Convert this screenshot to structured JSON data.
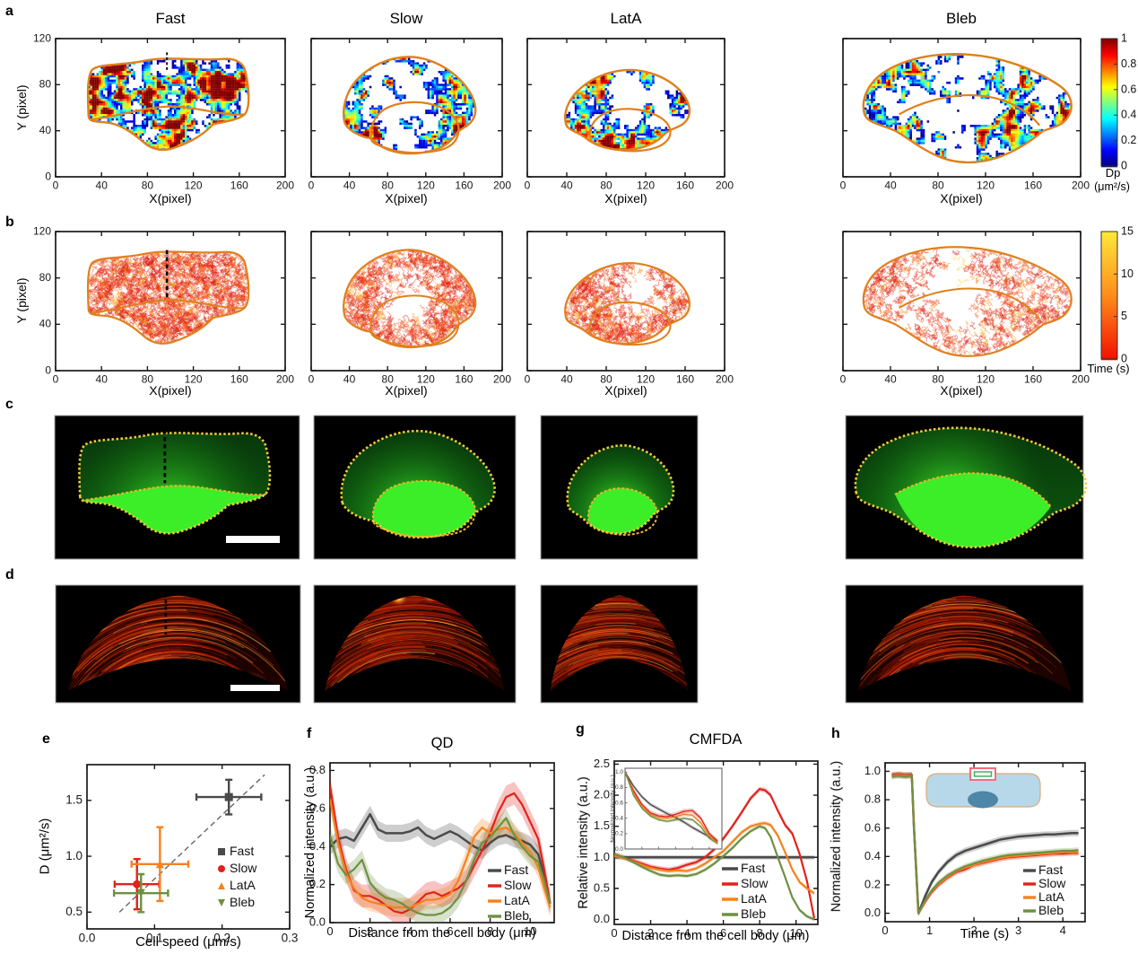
{
  "figure": {
    "bg": "#ffffff"
  },
  "panel_letters": {
    "a": "a",
    "b": "b",
    "c": "c",
    "d": "d",
    "e": "e",
    "f": "f",
    "g": "g",
    "h": "h"
  },
  "conditions": [
    "Fast",
    "Slow",
    "LatA",
    "Bleb"
  ],
  "condition_colors": {
    "Fast": "#4a4a4a",
    "Slow": "#e0231c",
    "LatA": "#f5821f",
    "Bleb": "#6e9043"
  },
  "outline_colors": {
    "cell_outline_orange": "#e0801c",
    "cell_outline_yellow": "#f5c93a",
    "inner_outline_yellow": "#eeb22e"
  },
  "row_a": {
    "xlabel": "X(pixel)",
    "ylabel": "Y (pixel)",
    "xlim": [
      0,
      200
    ],
    "ylim": [
      0,
      120
    ],
    "xticks": [
      0,
      40,
      80,
      120,
      160,
      200
    ],
    "xtick_labels": [
      "0",
      "40",
      "80",
      "120",
      "160",
      "200"
    ],
    "yticks": [
      0,
      40,
      80,
      120
    ],
    "ytick_labels": [
      "0",
      "40",
      "80",
      "120"
    ],
    "colorbar": {
      "title": "Dp",
      "units": "(μm²/s)",
      "tick_labels": [
        "0",
        "0.2",
        "0.4",
        "0.6",
        "0.8",
        "1"
      ],
      "colormap": "jet"
    }
  },
  "row_b": {
    "xlabel": "X(pixel)",
    "ylabel": "Y (pixel)",
    "xlim": [
      0,
      200
    ],
    "ylim": [
      0,
      120
    ],
    "xticks": [
      0,
      40,
      80,
      120,
      160,
      200
    ],
    "xtick_labels": [
      "0",
      "40",
      "80",
      "120",
      "160",
      "200"
    ],
    "yticks": [
      0,
      40,
      80,
      120
    ],
    "ytick_labels": [
      "0",
      "40",
      "80",
      "120"
    ],
    "colorbar": {
      "title": "Time (s)",
      "tick_labels": [
        "0",
        "5",
        "10",
        "15"
      ],
      "colormap": "red-yellow"
    }
  },
  "chart_data": {
    "e": {
      "type": "scatter",
      "xlabel": "Cell speed (μm/s)",
      "ylabel": "D (μm²/s)",
      "xlim": [
        0,
        0.3
      ],
      "ylim": [
        0.35,
        1.82
      ],
      "xticks": [
        0,
        0.1,
        0.2,
        0.3
      ],
      "xtick_labels": [
        "0.0",
        "0.1",
        "0.2",
        "0.3"
      ],
      "yticks": [
        0.5,
        1.0,
        1.5
      ],
      "ytick_labels": [
        "0.5",
        "1.0",
        "1.5"
      ],
      "series": [
        {
          "name": "Fast",
          "marker": "square",
          "color": "#4a4a4a",
          "x": 0.21,
          "y": 1.53,
          "xerr": 0.048,
          "yerr": 0.155
        },
        {
          "name": "Slow",
          "marker": "circle",
          "color": "#e0231c",
          "x": 0.074,
          "y": 0.75,
          "xerr": 0.033,
          "yerr": 0.225
        },
        {
          "name": "LatA",
          "marker": "triangle-up",
          "color": "#f5821f",
          "x": 0.108,
          "y": 0.93,
          "xerr": 0.042,
          "yerr": 0.33
        },
        {
          "name": "Bleb",
          "marker": "triangle-down",
          "color": "#6e9043",
          "x": 0.08,
          "y": 0.67,
          "xerr": 0.04,
          "yerr": 0.17
        }
      ],
      "trend_line": {
        "style": "dashed",
        "x": [
          0.048,
          0.263
        ],
        "y": [
          0.5,
          1.73
        ]
      },
      "legend_position": "right-center"
    },
    "f": {
      "type": "line",
      "title": "QD",
      "xlabel": "Distance from the cell body (μm)",
      "ylabel": "Normalized intensity (a.u.)",
      "xlim": [
        0,
        11.2
      ],
      "ylim": [
        0,
        0.84
      ],
      "xticks": [
        0,
        2,
        4,
        6,
        8,
        10
      ],
      "xtick_labels": [
        "0",
        "2",
        "4",
        "6",
        "8",
        "10"
      ],
      "yticks": [
        0,
        0.2,
        0.4,
        0.6,
        0.8
      ],
      "ytick_labels": [
        "0.0",
        "0.2",
        "0.4",
        "0.6",
        "0.8"
      ],
      "x": [
        0,
        0.4,
        0.8,
        1.2,
        1.6,
        2.0,
        2.4,
        2.8,
        3.2,
        3.6,
        4.0,
        4.4,
        4.8,
        5.2,
        5.6,
        6.0,
        6.4,
        6.8,
        7.2,
        7.6,
        8.0,
        8.4,
        8.8,
        9.2,
        9.6,
        10.0,
        10.4,
        10.7,
        11.0
      ],
      "series": [
        {
          "name": "Fast",
          "color": "#4a4a4a",
          "band": 0.045,
          "y": [
            0.4,
            0.44,
            0.45,
            0.43,
            0.5,
            0.57,
            0.49,
            0.47,
            0.47,
            0.47,
            0.48,
            0.5,
            0.46,
            0.44,
            0.46,
            0.48,
            0.46,
            0.43,
            0.4,
            0.38,
            0.42,
            0.45,
            0.46,
            0.44,
            0.43,
            0.41,
            0.36,
            0.25,
            0.1
          ]
        },
        {
          "name": "Slow",
          "color": "#e0231c",
          "band": 0.06,
          "y": [
            0.72,
            0.45,
            0.28,
            0.17,
            0.14,
            0.14,
            0.12,
            0.09,
            0.06,
            0.05,
            0.07,
            0.11,
            0.15,
            0.16,
            0.14,
            0.16,
            0.18,
            0.22,
            0.3,
            0.38,
            0.47,
            0.58,
            0.66,
            0.68,
            0.62,
            0.53,
            0.44,
            0.28,
            0.1
          ]
        },
        {
          "name": "LatA",
          "color": "#f5821f",
          "band": 0.05,
          "y": [
            0.65,
            0.42,
            0.26,
            0.18,
            0.13,
            0.11,
            0.1,
            0.09,
            0.08,
            0.08,
            0.08,
            0.1,
            0.12,
            0.12,
            0.13,
            0.15,
            0.22,
            0.33,
            0.45,
            0.5,
            0.47,
            0.49,
            0.5,
            0.47,
            0.42,
            0.37,
            0.29,
            0.18,
            0.08
          ]
        },
        {
          "name": "Bleb",
          "color": "#6e9043",
          "band": 0.05,
          "y": [
            0.46,
            0.31,
            0.25,
            0.28,
            0.33,
            0.21,
            0.16,
            0.13,
            0.12,
            0.1,
            0.07,
            0.05,
            0.04,
            0.04,
            0.05,
            0.08,
            0.13,
            0.22,
            0.33,
            0.42,
            0.45,
            0.5,
            0.55,
            0.46,
            0.4,
            0.35,
            0.32,
            0.22,
            0.1
          ]
        }
      ]
    },
    "g": {
      "type": "line",
      "title": "CMFDA",
      "xlabel": "Distance from the cell body (μm)",
      "ylabel": "Relative intensity (a.u.)",
      "xlim": [
        0,
        11.2
      ],
      "ylim": [
        -0.08,
        2.55
      ],
      "xticks": [
        0,
        2,
        4,
        6,
        8,
        10
      ],
      "xtick_labels": [
        "0",
        "2",
        "4",
        "6",
        "8",
        "10"
      ],
      "yticks": [
        0,
        0.5,
        1.0,
        1.5,
        2.0,
        2.5
      ],
      "ytick_labels": [
        "0.0",
        "0.5",
        "1.0",
        "1.5",
        "2.0",
        "2.5"
      ],
      "x": [
        0,
        0.5,
        1,
        1.5,
        2,
        2.5,
        3,
        3.5,
        4,
        4.5,
        5,
        5.5,
        6,
        6.5,
        7,
        7.5,
        8,
        8.3,
        8.6,
        9,
        9.4,
        9.8,
        10.2,
        10.6,
        11
      ],
      "series": [
        {
          "name": "Fast",
          "color": "#4a4a4a",
          "band": 0.035,
          "y": [
            1.0,
            1.0,
            1.0,
            1.0,
            1.0,
            1.0,
            1.0,
            1.0,
            1.0,
            1.0,
            1.0,
            1.0,
            1.0,
            1.0,
            1.0,
            1.0,
            1.0,
            1.0,
            1.0,
            1.0,
            1.0,
            1.0,
            1.0,
            1.0,
            1.0
          ]
        },
        {
          "name": "Slow",
          "color": "#e0231c",
          "band": 0.04,
          "y": [
            1.05,
            1.0,
            0.95,
            0.9,
            0.85,
            0.82,
            0.8,
            0.83,
            0.88,
            0.92,
            1.0,
            1.13,
            1.3,
            1.5,
            1.72,
            1.95,
            2.1,
            2.08,
            2.0,
            1.75,
            1.52,
            1.38,
            1.05,
            0.62,
            0.02
          ]
        },
        {
          "name": "LatA",
          "color": "#f5821f",
          "band": 0.035,
          "y": [
            1.02,
            0.99,
            0.94,
            0.88,
            0.83,
            0.8,
            0.78,
            0.79,
            0.78,
            0.82,
            0.9,
            1.0,
            1.1,
            1.25,
            1.4,
            1.5,
            1.54,
            1.55,
            1.52,
            1.35,
            1.08,
            0.8,
            0.6,
            0.5,
            0.42
          ]
        },
        {
          "name": "Bleb",
          "color": "#6e9043",
          "band": 0.03,
          "y": [
            1.05,
            1.0,
            0.93,
            0.85,
            0.78,
            0.72,
            0.7,
            0.71,
            0.7,
            0.73,
            0.8,
            0.9,
            1.02,
            1.15,
            1.3,
            1.42,
            1.5,
            1.47,
            1.33,
            1.0,
            0.68,
            0.35,
            0.15,
            0.05,
            0.0
          ]
        }
      ],
      "inset": {
        "ylabel": "Normalized intensity (a.u.)",
        "ylim": [
          0,
          1.05
        ],
        "xlim": [
          0,
          11.5
        ],
        "yticks": [
          0,
          0.2,
          0.4,
          0.6,
          0.8,
          1.0
        ],
        "ytick_labels": [
          "0.0",
          "0.2",
          "0.4",
          "0.6",
          "0.8",
          "1.0"
        ],
        "x": [
          0,
          1,
          2,
          3,
          4,
          5,
          6,
          7,
          8,
          9,
          10,
          11
        ],
        "series": [
          {
            "name": "Fast",
            "color": "#4a4a4a",
            "band": 0.025,
            "y": [
              1.0,
              0.82,
              0.68,
              0.58,
              0.52,
              0.46,
              0.41,
              0.35,
              0.28,
              0.22,
              0.16,
              0.1
            ]
          },
          {
            "name": "Slow",
            "color": "#e0231c",
            "band": 0.03,
            "y": [
              1.0,
              0.76,
              0.58,
              0.47,
              0.43,
              0.42,
              0.45,
              0.49,
              0.5,
              0.4,
              0.2,
              0.1
            ]
          },
          {
            "name": "LatA",
            "color": "#f5821f",
            "band": 0.025,
            "y": [
              1.0,
              0.73,
              0.55,
              0.45,
              0.41,
              0.4,
              0.42,
              0.45,
              0.44,
              0.34,
              0.17,
              0.08
            ]
          },
          {
            "name": "Bleb",
            "color": "#6e9043",
            "band": 0.02,
            "y": [
              1.0,
              0.7,
              0.53,
              0.43,
              0.38,
              0.36,
              0.38,
              0.4,
              0.38,
              0.29,
              0.14,
              0.07
            ]
          }
        ]
      }
    },
    "h": {
      "type": "line",
      "xlabel": "Time (s)",
      "ylabel": "Normalized intensity (a.u.)",
      "xlim": [
        0,
        4.5
      ],
      "ylim": [
        -0.06,
        1.06
      ],
      "xticks": [
        0,
        1,
        2,
        3,
        4
      ],
      "xtick_labels": [
        "0",
        "1",
        "2",
        "3",
        "4"
      ],
      "yticks": [
        0,
        0.2,
        0.4,
        0.6,
        0.8,
        1.0
      ],
      "ytick_labels": [
        "0.0",
        "0.2",
        "0.4",
        "0.6",
        "0.8",
        "1.0"
      ],
      "x": [
        0.15,
        0.3,
        0.45,
        0.6,
        0.65,
        0.75,
        0.9,
        1.05,
        1.2,
        1.4,
        1.6,
        1.8,
        2.0,
        2.2,
        2.4,
        2.6,
        2.8,
        3.0,
        3.2,
        3.4,
        3.6,
        3.8,
        4.0,
        4.2,
        4.35
      ],
      "series": [
        {
          "name": "Fast",
          "color": "#4a4a4a",
          "band": 0.022,
          "y": [
            0.97,
            0.975,
            0.97,
            0.975,
            0.6,
            0.0,
            0.12,
            0.22,
            0.29,
            0.36,
            0.41,
            0.44,
            0.46,
            0.48,
            0.5,
            0.52,
            0.53,
            0.54,
            0.545,
            0.55,
            0.555,
            0.555,
            0.56,
            0.565,
            0.565
          ]
        },
        {
          "name": "Slow",
          "color": "#e0231c",
          "band": 0.02,
          "y": [
            0.975,
            0.98,
            0.975,
            0.975,
            0.6,
            0.0,
            0.08,
            0.15,
            0.2,
            0.25,
            0.29,
            0.31,
            0.34,
            0.355,
            0.37,
            0.385,
            0.395,
            0.4,
            0.405,
            0.41,
            0.415,
            0.42,
            0.42,
            0.425,
            0.425
          ]
        },
        {
          "name": "LatA",
          "color": "#f5821f",
          "band": 0.02,
          "y": [
            0.97,
            0.975,
            0.97,
            0.97,
            0.6,
            0.0,
            0.085,
            0.155,
            0.205,
            0.255,
            0.295,
            0.32,
            0.34,
            0.36,
            0.375,
            0.39,
            0.4,
            0.405,
            0.41,
            0.415,
            0.42,
            0.425,
            0.43,
            0.43,
            0.43
          ]
        },
        {
          "name": "Bleb",
          "color": "#6e9043",
          "band": 0.02,
          "y": [
            0.965,
            0.97,
            0.965,
            0.97,
            0.6,
            0.0,
            0.09,
            0.16,
            0.215,
            0.265,
            0.3,
            0.33,
            0.35,
            0.37,
            0.385,
            0.4,
            0.41,
            0.415,
            0.42,
            0.425,
            0.43,
            0.435,
            0.44,
            0.44,
            0.445
          ]
        }
      ]
    }
  }
}
